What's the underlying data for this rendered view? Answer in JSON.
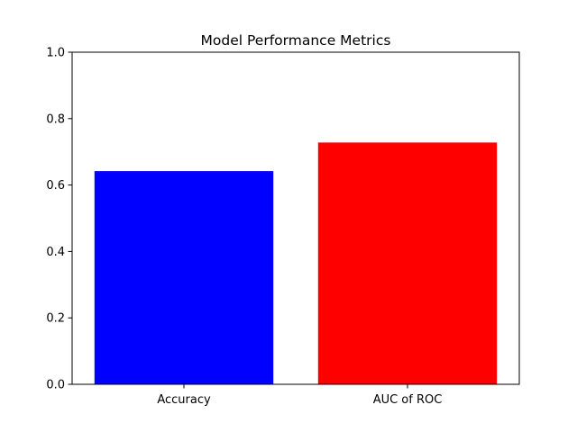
{
  "chart_data": {
    "type": "bar",
    "title": "Model Performance Metrics",
    "xlabel": "",
    "ylabel": "",
    "categories": [
      "Accuracy",
      "AUC of ROC"
    ],
    "values": [
      0.642,
      0.728
    ],
    "colors": [
      "#0000ff",
      "#ff0000"
    ],
    "ylim": [
      0,
      1.0
    ],
    "yticks": [
      0.0,
      0.2,
      0.4,
      0.6,
      0.8,
      1.0
    ],
    "ytick_labels": [
      "0.0",
      "0.2",
      "0.4",
      "0.6",
      "0.8",
      "1.0"
    ],
    "grid": false,
    "legend": false
  }
}
